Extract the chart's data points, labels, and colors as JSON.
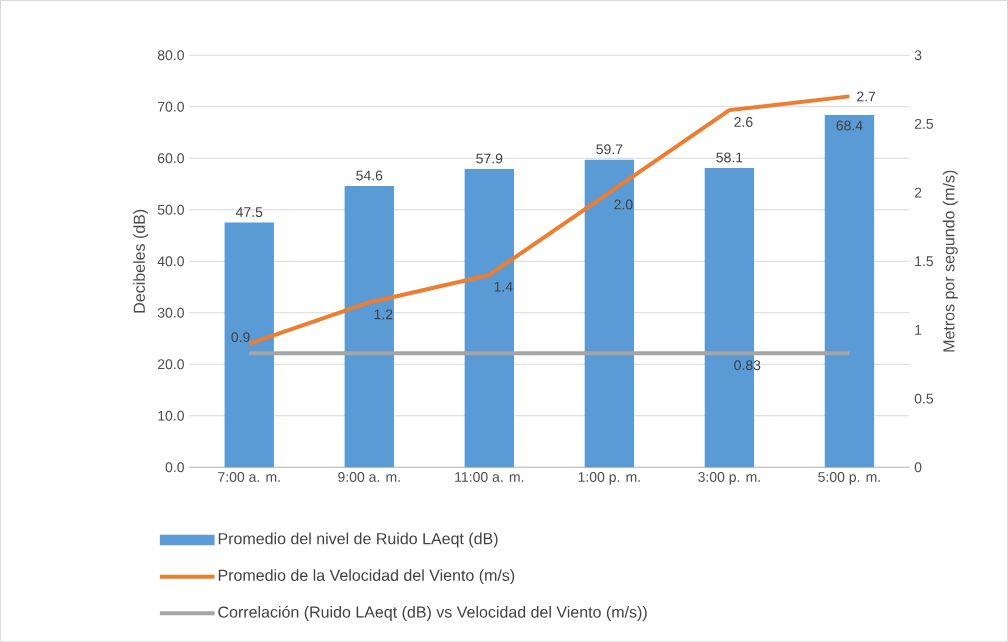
{
  "chart_data": {
    "type": "bar",
    "categories": [
      "7:00 a. m.",
      "9:00 a. m.",
      "11:00 a. m.",
      "1:00 p. m.",
      "3:00 p. m.",
      "5:00 p. m."
    ],
    "ylabel": "Decibeles (dB)",
    "y2label": "Metros por segundo (m/s)",
    "ylim": [
      0,
      80
    ],
    "yticks": [
      {
        "value": 0,
        "label": "0.0"
      },
      {
        "value": 10,
        "label": "10.0"
      },
      {
        "value": 20,
        "label": "20.0"
      },
      {
        "value": 30,
        "label": "30.0"
      },
      {
        "value": 40,
        "label": "40.0"
      },
      {
        "value": 50,
        "label": "50.0"
      },
      {
        "value": 60,
        "label": "60.0"
      },
      {
        "value": 70,
        "label": "70.0"
      },
      {
        "value": 80,
        "label": "80.0"
      }
    ],
    "y2lim": [
      0,
      3
    ],
    "y2ticks": [
      0,
      0.5,
      1,
      1.5,
      2,
      2.5,
      3
    ],
    "grid": "y",
    "legend": "bottom",
    "series": [
      {
        "name": "Promedio del nivel de Ruido LAeqt (dB)",
        "color": "#5b9bd5",
        "values": [
          47.5,
          54.6,
          57.9,
          59.7,
          58.1,
          68.4
        ],
        "value_labels": [
          "47.5",
          "54.6",
          "57.9",
          "59.7",
          "58.1",
          "68.4"
        ]
      },
      {
        "name": "Promedio de la Velocidad del Viento (m/s)",
        "type": "line",
        "axis": "y2",
        "color": "#ed7d31",
        "values": [
          0.9,
          1.2,
          1.4,
          2.0,
          2.6,
          2.7
        ],
        "value_labels": [
          "0.9",
          "1.2",
          "1.4",
          "2.0",
          "2.6",
          "2.7"
        ]
      },
      {
        "name": "Correlación (Ruido LAeqt (dB) vs Velocidad del Viento (m/s))",
        "type": "line",
        "axis": "y2",
        "color": "#a5a5a5",
        "values": [
          0.83,
          0.83,
          0.83,
          0.83,
          0.83,
          0.83
        ],
        "value_labels": [
          null,
          null,
          null,
          null,
          "0.83",
          null
        ]
      }
    ]
  }
}
